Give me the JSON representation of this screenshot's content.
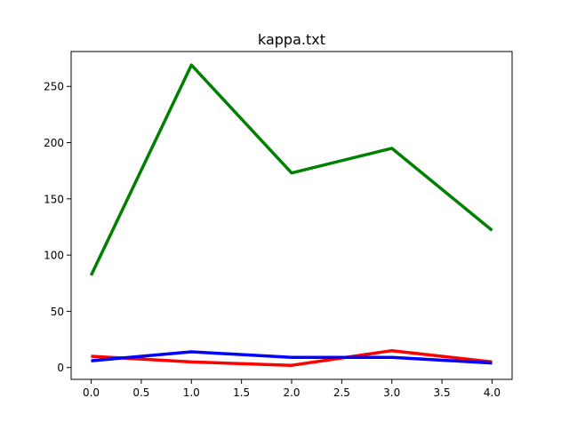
{
  "chart_data": {
    "type": "line",
    "title": "kappa.txt",
    "xlabel": "",
    "ylabel": "",
    "x": [
      0,
      1,
      2,
      3,
      4
    ],
    "xlim": [
      -0.2,
      4.2
    ],
    "ylim": [
      -10.5,
      281
    ],
    "xticks": [
      0,
      0.5,
      1,
      1.5,
      2,
      2.5,
      3,
      3.5,
      4
    ],
    "xtick_labels": [
      "0.0",
      "0.5",
      "1.0",
      "1.5",
      "2.0",
      "2.5",
      "3.0",
      "3.5",
      "4.0"
    ],
    "yticks": [
      0,
      50,
      100,
      150,
      200,
      250
    ],
    "ytick_labels": [
      "0",
      "50",
      "100",
      "150",
      "200",
      "250"
    ],
    "grid": false,
    "legend": "none",
    "series": [
      {
        "color": "#008000",
        "values": [
          82,
          269,
          173,
          195,
          122
        ]
      },
      {
        "color": "#ff0000",
        "values": [
          10,
          5,
          2,
          15,
          5
        ]
      },
      {
        "color": "#0000ff",
        "values": [
          6,
          14,
          9,
          9,
          4
        ]
      }
    ]
  }
}
